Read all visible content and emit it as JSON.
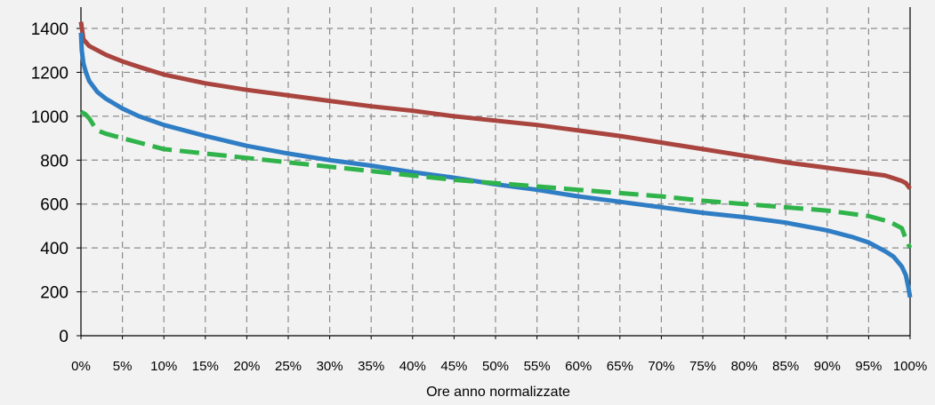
{
  "chart_data": {
    "type": "line",
    "title": "",
    "xlabel": "Ore anno normalizzate",
    "ylabel": "",
    "xlim": [
      0,
      100
    ],
    "ylim": [
      0,
      1400
    ],
    "grid": true,
    "y_ticks": [
      0,
      200,
      400,
      600,
      800,
      1000,
      1200,
      1400
    ],
    "x_ticks": [
      "0%",
      "5%",
      "10%",
      "15%",
      "20%",
      "25%",
      "30%",
      "35%",
      "40%",
      "45%",
      "50%",
      "55%",
      "60%",
      "65%",
      "70%",
      "75%",
      "80%",
      "85%",
      "90%",
      "95%",
      "100%"
    ],
    "series": [
      {
        "color": "#a9443e",
        "style": "solid",
        "x": [
          0,
          0.3,
          1,
          2,
          3,
          5,
          7,
          10,
          15,
          20,
          25,
          30,
          35,
          40,
          45,
          50,
          55,
          60,
          65,
          70,
          75,
          80,
          85,
          90,
          95,
          97,
          98,
          99,
          99.5,
          100
        ],
        "values": [
          1430,
          1350,
          1320,
          1300,
          1280,
          1250,
          1225,
          1190,
          1150,
          1120,
          1095,
          1070,
          1045,
          1025,
          1000,
          980,
          960,
          935,
          910,
          880,
          850,
          820,
          790,
          765,
          740,
          730,
          718,
          705,
          695,
          670
        ]
      },
      {
        "color": "#2f7dc4",
        "style": "solid",
        "x": [
          0,
          0.1,
          0.3,
          0.6,
          1,
          2,
          3,
          5,
          7,
          10,
          15,
          20,
          25,
          30,
          35,
          40,
          45,
          50,
          55,
          60,
          65,
          70,
          75,
          80,
          85,
          90,
          93,
          95,
          97,
          98,
          99,
          99.5,
          99.8,
          100
        ],
        "values": [
          1380,
          1300,
          1240,
          1200,
          1160,
          1110,
          1080,
          1035,
          1000,
          960,
          910,
          865,
          830,
          800,
          775,
          745,
          720,
          690,
          665,
          635,
          610,
          585,
          560,
          540,
          515,
          480,
          450,
          425,
          385,
          360,
          315,
          275,
          220,
          175
        ]
      },
      {
        "color": "#2fb34a",
        "style": "dashed",
        "x": [
          0,
          0.5,
          1,
          1.5,
          2,
          3,
          5,
          7,
          10,
          15,
          20,
          25,
          30,
          35,
          40,
          45,
          50,
          55,
          60,
          65,
          70,
          75,
          80,
          85,
          90,
          95,
          97,
          98,
          99,
          99.5,
          100
        ],
        "values": [
          1020,
          1010,
          990,
          960,
          935,
          920,
          900,
          880,
          850,
          830,
          810,
          790,
          770,
          750,
          730,
          710,
          695,
          680,
          665,
          650,
          635,
          615,
          600,
          585,
          570,
          545,
          525,
          510,
          490,
          440,
          400
        ]
      }
    ]
  }
}
